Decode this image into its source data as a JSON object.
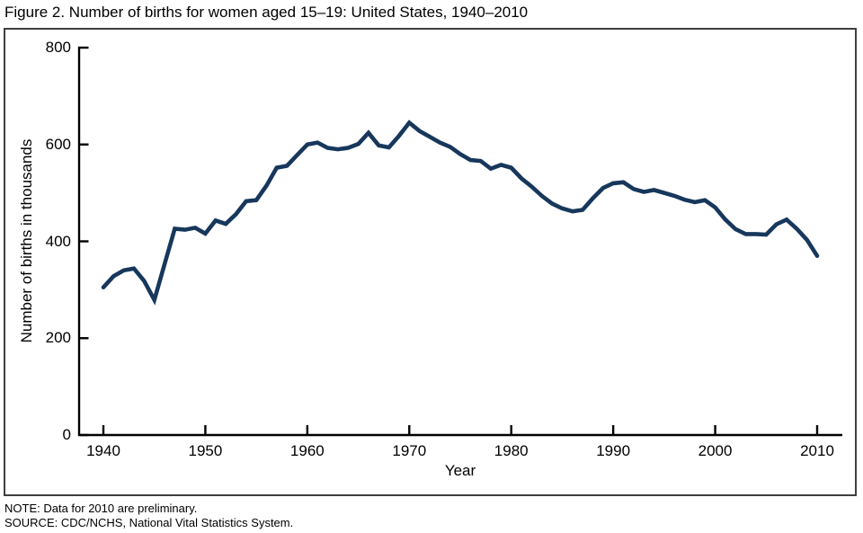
{
  "figure": {
    "title": "Figure 2. Number of births for women aged 15–19: United States, 1940–2010",
    "note": "NOTE: Data for 2010 are preliminary.",
    "source": "SOURCE: CDC/NCHS, National Vital Statistics System."
  },
  "chart_data": {
    "type": "line",
    "title": "Figure 2. Number of births for women aged 15–19: United States, 1940–2010",
    "xlabel": "Year",
    "ylabel": "Number of births in thousands",
    "xticks": [
      1940,
      1950,
      1960,
      1970,
      1980,
      1990,
      2000,
      2010
    ],
    "yticks": [
      0,
      200,
      400,
      600,
      800
    ],
    "ylim": [
      0,
      800
    ],
    "xlim": [
      1937.6,
      2012.5
    ],
    "grid": false,
    "legend": "none",
    "line_color": "#17375C",
    "axis_color": "#000000",
    "series": [
      {
        "name": "Number of births to women aged 15–19 (thousands)",
        "x": [
          1940,
          1941,
          1942,
          1943,
          1944,
          1945,
          1946,
          1947,
          1948,
          1949,
          1950,
          1951,
          1952,
          1953,
          1954,
          1955,
          1956,
          1957,
          1958,
          1959,
          1960,
          1961,
          1962,
          1963,
          1964,
          1965,
          1966,
          1967,
          1968,
          1969,
          1970,
          1971,
          1972,
          1973,
          1974,
          1975,
          1976,
          1977,
          1978,
          1979,
          1980,
          1981,
          1982,
          1983,
          1984,
          1985,
          1986,
          1987,
          1988,
          1989,
          1990,
          1991,
          1992,
          1993,
          1994,
          1995,
          1996,
          1997,
          1998,
          1999,
          2000,
          2001,
          2002,
          2003,
          2004,
          2005,
          2006,
          2007,
          2008,
          2009,
          2010
        ],
        "y": [
          305,
          328,
          340,
          344,
          318,
          279,
          353,
          426,
          424,
          428,
          416,
          443,
          436,
          456,
          483,
          485,
          515,
          552,
          556,
          578,
          600,
          604,
          593,
          590,
          593,
          601,
          624,
          598,
          594,
          618,
          645,
          628,
          616,
          604,
          595,
          580,
          568,
          566,
          550,
          558,
          552,
          530,
          513,
          494,
          478,
          468,
          462,
          465,
          489,
          510,
          520,
          522,
          508,
          502,
          506,
          500,
          494,
          486,
          481,
          485,
          470,
          445,
          425,
          415,
          415,
          414,
          435,
          445,
          426,
          403,
          370
        ]
      }
    ]
  }
}
